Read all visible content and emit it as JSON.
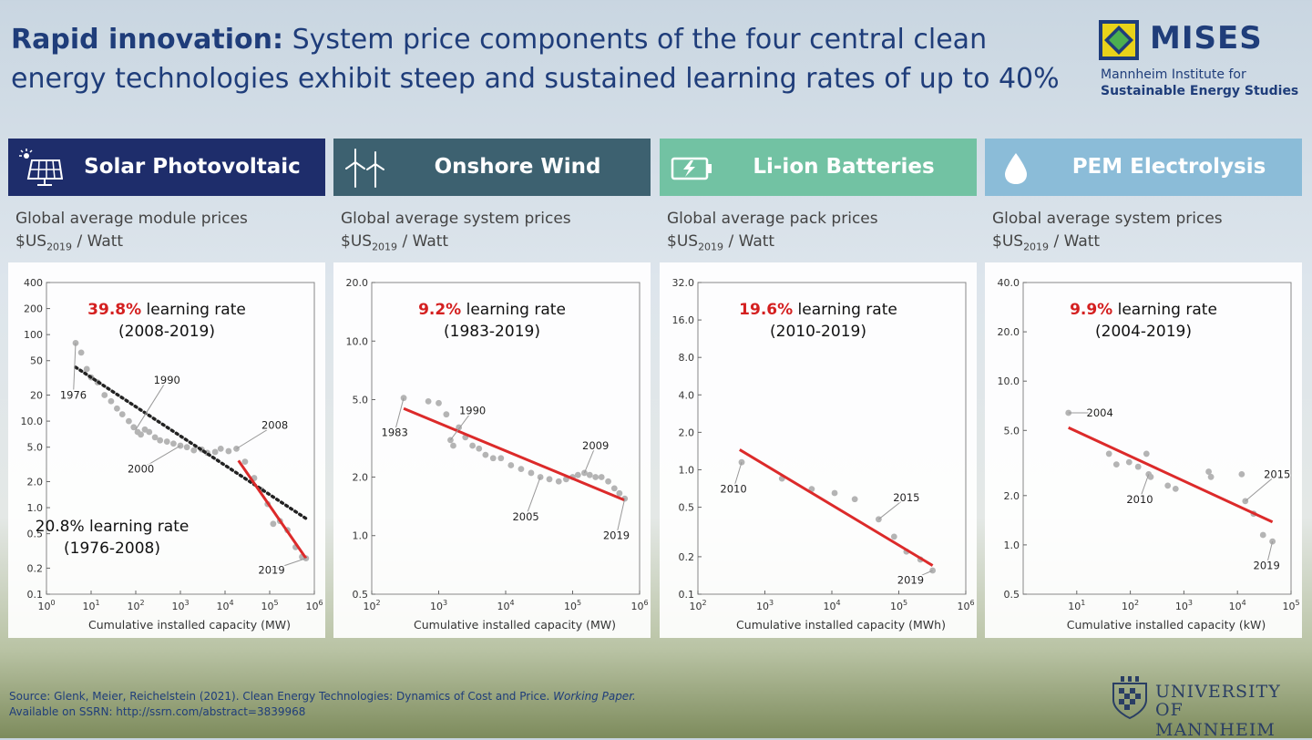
{
  "header": {
    "title_bold": "Rapid innovation:",
    "title_rest": " System price components of the four central clean energy technologies exhibit steep and sustained learning rates of up to 40%"
  },
  "logo": {
    "name": "MISES",
    "line1": "Mannheim Institute for",
    "line2": "Sustainable Energy Studies"
  },
  "panels": [
    {
      "title": "Solar Photovoltaic",
      "color": "#1e2d6b",
      "icon": "solar-panel-icon",
      "subtitle": "Global average module prices",
      "unit_prefix": "$US",
      "unit_sub": "2019",
      "unit_suffix": " / Watt",
      "lr_pct": "39.8%",
      "lr_text": " learning rate",
      "lr_period": "(2008-2019)",
      "lr2_text": "20.8% learning rate",
      "lr2_period": "(1976-2008)"
    },
    {
      "title": "Onshore Wind",
      "color": "#3d6170",
      "icon": "wind-turbine-icon",
      "subtitle": "Global average system prices",
      "unit_prefix": "$US",
      "unit_sub": "2019",
      "unit_suffix": " / Watt",
      "lr_pct": "9.2%",
      "lr_text": " learning rate",
      "lr_period": "(1983-2019)"
    },
    {
      "title": "Li-ion Batteries",
      "color": "#72c2a3",
      "icon": "battery-icon",
      "subtitle": "Global average pack prices",
      "unit_prefix": "$US",
      "unit_sub": "2019",
      "unit_suffix": " / Watt",
      "lr_pct": "19.6%",
      "lr_text": " learning rate",
      "lr_period": "(2010-2019)"
    },
    {
      "title": "PEM Electrolysis",
      "color": "#8bbcd8",
      "icon": "water-drop-icon",
      "subtitle": "Global average system prices",
      "unit_prefix": "$US",
      "unit_sub": "2019",
      "unit_suffix": " / Watt",
      "lr_pct": "9.9%",
      "lr_text": " learning rate",
      "lr_period": "(2004-2019)"
    }
  ],
  "chart_data": [
    {
      "type": "scatter",
      "xscale": "log",
      "yscale": "log",
      "xlabel": "Cumulative installed capacity (MW)",
      "xlim": [
        1,
        1000000
      ],
      "ylim": [
        0.1,
        400
      ],
      "xticks": [
        {
          "v": 1,
          "e": "0"
        },
        {
          "v": 10,
          "e": "1"
        },
        {
          "v": 100,
          "e": "2"
        },
        {
          "v": 1000,
          "e": "3"
        },
        {
          "v": 10000,
          "e": "4"
        },
        {
          "v": 100000,
          "e": "5"
        },
        {
          "v": 1000000,
          "e": "6"
        }
      ],
      "yticks": [
        {
          "v": 0.1,
          "t": "0.1"
        },
        {
          "v": 0.2,
          "t": "0.2"
        },
        {
          "v": 0.5,
          "t": "0.5"
        },
        {
          "v": 1,
          "t": "1.0"
        },
        {
          "v": 2,
          "t": "2.0"
        },
        {
          "v": 5,
          "t": "5.0"
        },
        {
          "v": 10,
          "t": "10.0"
        },
        {
          "v": 20,
          "t": "20"
        },
        {
          "v": 50,
          "t": "50"
        },
        {
          "v": 100,
          "t": "100"
        },
        {
          "v": 200,
          "t": "200"
        },
        {
          "v": 400,
          "t": "400"
        }
      ],
      "points": [
        [
          4.5,
          80
        ],
        [
          6,
          62
        ],
        [
          8,
          40
        ],
        [
          10,
          32
        ],
        [
          14,
          28
        ],
        [
          20,
          20
        ],
        [
          28,
          17
        ],
        [
          38,
          14
        ],
        [
          50,
          12
        ],
        [
          70,
          10
        ],
        [
          90,
          8.5
        ],
        [
          110,
          7.5
        ],
        [
          130,
          7
        ],
        [
          160,
          8
        ],
        [
          200,
          7.5
        ],
        [
          270,
          6.5
        ],
        [
          350,
          6
        ],
        [
          500,
          5.8
        ],
        [
          700,
          5.5
        ],
        [
          1000,
          5.2
        ],
        [
          1400,
          5
        ],
        [
          2000,
          4.6
        ],
        [
          3000,
          4.7
        ],
        [
          4000,
          4.3
        ],
        [
          6000,
          4.4
        ],
        [
          8000,
          4.8
        ],
        [
          12000,
          4.5
        ],
        [
          18000,
          4.8
        ],
        [
          28000,
          3.4
        ],
        [
          45000,
          2.2
        ],
        [
          65000,
          1.6
        ],
        [
          90000,
          1.1
        ],
        [
          120000,
          0.65
        ],
        [
          170000,
          0.7
        ],
        [
          250000,
          0.55
        ],
        [
          380000,
          0.35
        ],
        [
          530000,
          0.27
        ],
        [
          650000,
          0.26
        ]
      ],
      "fits": [
        {
          "style": "dotted",
          "color": "#222",
          "from": [
            4.5,
            42
          ],
          "to": [
            650000,
            0.75
          ]
        },
        {
          "style": "solid",
          "color": "#dc2a2a",
          "from": [
            20000,
            3.5
          ],
          "to": [
            650000,
            0.26
          ]
        }
      ],
      "annotations": [
        {
          "text": "1976",
          "at": [
            4.5,
            80
          ],
          "tx": [
            4.0,
            20
          ]
        },
        {
          "text": "1990",
          "at": [
            100,
            8
          ],
          "tx": [
            500,
            30
          ]
        },
        {
          "text": "2000",
          "at": [
            1000,
            5.2
          ],
          "tx": [
            130,
            2.8
          ]
        },
        {
          "text": "2008",
          "at": [
            18000,
            4.8
          ],
          "tx": [
            130000,
            9
          ]
        },
        {
          "text": "2019",
          "at": [
            650000,
            0.26
          ],
          "tx": [
            110000,
            0.19
          ]
        }
      ]
    },
    {
      "type": "scatter",
      "xscale": "log",
      "yscale": "log",
      "xlabel": "Cumulative installed capacity (MW)",
      "xlim": [
        100,
        1000000
      ],
      "ylim": [
        0.5,
        20
      ],
      "xticks": [
        {
          "v": 100,
          "e": "2"
        },
        {
          "v": 1000,
          "e": "3"
        },
        {
          "v": 10000,
          "e": "4"
        },
        {
          "v": 100000,
          "e": "5"
        },
        {
          "v": 1000000,
          "e": "6"
        }
      ],
      "yticks": [
        {
          "v": 0.5,
          "t": "0.5"
        },
        {
          "v": 1,
          "t": "1.0"
        },
        {
          "v": 2,
          "t": "2.0"
        },
        {
          "v": 5,
          "t": "5.0"
        },
        {
          "v": 10,
          "t": "10.0"
        },
        {
          "v": 20,
          "t": "20.0"
        }
      ],
      "points": [
        [
          300,
          5.1
        ],
        [
          700,
          4.9
        ],
        [
          1000,
          4.8
        ],
        [
          1300,
          4.2
        ],
        [
          1500,
          3.1
        ],
        [
          1650,
          2.9
        ],
        [
          2000,
          3.6
        ],
        [
          2500,
          3.2
        ],
        [
          3200,
          2.9
        ],
        [
          4000,
          2.8
        ],
        [
          5000,
          2.6
        ],
        [
          6500,
          2.5
        ],
        [
          8500,
          2.5
        ],
        [
          12000,
          2.3
        ],
        [
          17000,
          2.2
        ],
        [
          24000,
          2.1
        ],
        [
          33000,
          2.0
        ],
        [
          45000,
          1.95
        ],
        [
          62000,
          1.9
        ],
        [
          80000,
          1.95
        ],
        [
          100000,
          2.0
        ],
        [
          120000,
          2.05
        ],
        [
          150000,
          2.1
        ],
        [
          180000,
          2.05
        ],
        [
          220000,
          2.0
        ],
        [
          270000,
          2.0
        ],
        [
          340000,
          1.9
        ],
        [
          420000,
          1.75
        ],
        [
          500000,
          1.65
        ],
        [
          600000,
          1.55
        ]
      ],
      "fits": [
        {
          "style": "solid",
          "color": "#dc2a2a",
          "from": [
            300,
            4.5
          ],
          "to": [
            600000,
            1.52
          ]
        }
      ],
      "annotations": [
        {
          "text": "1983",
          "at": [
            300,
            5.1
          ],
          "tx": [
            220,
            3.4
          ]
        },
        {
          "text": "1990",
          "at": [
            1500,
            3.1
          ],
          "tx": [
            3200,
            4.4
          ]
        },
        {
          "text": "2005",
          "at": [
            33000,
            2.0
          ],
          "tx": [
            20000,
            1.25
          ]
        },
        {
          "text": "2009",
          "at": [
            150000,
            2.1
          ],
          "tx": [
            220000,
            2.9
          ]
        },
        {
          "text": "2019",
          "at": [
            600000,
            1.55
          ],
          "tx": [
            450000,
            1.0
          ]
        }
      ]
    },
    {
      "type": "scatter",
      "xscale": "log",
      "yscale": "log",
      "xlabel": "Cumulative installed capacity (MWh)",
      "xlim": [
        100,
        1000000
      ],
      "ylim": [
        0.1,
        32
      ],
      "xticks": [
        {
          "v": 100,
          "e": "2"
        },
        {
          "v": 1000,
          "e": "3"
        },
        {
          "v": 10000,
          "e": "4"
        },
        {
          "v": 100000,
          "e": "5"
        },
        {
          "v": 1000000,
          "e": "6"
        }
      ],
      "yticks": [
        {
          "v": 0.1,
          "t": "0.1"
        },
        {
          "v": 0.2,
          "t": "0.2"
        },
        {
          "v": 0.5,
          "t": "0.5"
        },
        {
          "v": 1,
          "t": "1.0"
        },
        {
          "v": 2,
          "t": "2.0"
        },
        {
          "v": 4,
          "t": "4.0"
        },
        {
          "v": 8,
          "t": "8.0"
        },
        {
          "v": 16,
          "t": "16.0"
        },
        {
          "v": 32,
          "t": "32.0"
        }
      ],
      "points": [
        [
          450,
          1.15
        ],
        [
          1800,
          0.85
        ],
        [
          5000,
          0.7
        ],
        [
          11000,
          0.65
        ],
        [
          22000,
          0.58
        ],
        [
          50000,
          0.4
        ],
        [
          85000,
          0.29
        ],
        [
          130000,
          0.22
        ],
        [
          210000,
          0.19
        ],
        [
          320000,
          0.155
        ]
      ],
      "fits": [
        {
          "style": "solid",
          "color": "#dc2a2a",
          "from": [
            420,
            1.45
          ],
          "to": [
            320000,
            0.17
          ]
        }
      ],
      "annotations": [
        {
          "text": "2010",
          "at": [
            450,
            1.15
          ],
          "tx": [
            340,
            0.7
          ]
        },
        {
          "text": "2015",
          "at": [
            50000,
            0.4
          ],
          "tx": [
            130000,
            0.6
          ]
        },
        {
          "text": "2019",
          "at": [
            320000,
            0.155
          ],
          "tx": [
            150000,
            0.13
          ]
        }
      ]
    },
    {
      "type": "scatter",
      "xscale": "log",
      "yscale": "log",
      "xlabel": "Cumulative installed capacity (kW)",
      "xlim": [
        1,
        100000
      ],
      "ylim": [
        0.5,
        40
      ],
      "xticks": [
        {
          "v": 10,
          "e": "1"
        },
        {
          "v": 100,
          "e": "2"
        },
        {
          "v": 1000,
          "e": "3"
        },
        {
          "v": 10000,
          "e": "4"
        },
        {
          "v": 100000,
          "e": "5"
        }
      ],
      "yticks": [
        {
          "v": 0.5,
          "t": "0.5"
        },
        {
          "v": 1,
          "t": "1.0"
        },
        {
          "v": 2,
          "t": "2.0"
        },
        {
          "v": 5,
          "t": "5.0"
        },
        {
          "v": 10,
          "t": "10.0"
        },
        {
          "v": 20,
          "t": "20.0"
        },
        {
          "v": 40,
          "t": "40.0"
        }
      ],
      "points": [
        [
          7,
          6.4
        ],
        [
          40,
          3.6
        ],
        [
          55,
          3.1
        ],
        [
          95,
          3.2
        ],
        [
          140,
          3.0
        ],
        [
          200,
          3.6
        ],
        [
          220,
          2.7
        ],
        [
          240,
          2.6
        ],
        [
          500,
          2.3
        ],
        [
          700,
          2.2
        ],
        [
          2900,
          2.8
        ],
        [
          3200,
          2.6
        ],
        [
          12000,
          2.7
        ],
        [
          14000,
          1.85
        ],
        [
          20000,
          1.55
        ],
        [
          30000,
          1.15
        ],
        [
          45000,
          1.05
        ]
      ],
      "fits": [
        {
          "style": "solid",
          "color": "#dc2a2a",
          "from": [
            7,
            5.2
          ],
          "to": [
            45000,
            1.38
          ]
        }
      ],
      "annotations": [
        {
          "text": "2004",
          "at": [
            7,
            6.4
          ],
          "tx": [
            27,
            6.4
          ]
        },
        {
          "text": "2010",
          "at": [
            220,
            2.7
          ],
          "tx": [
            150,
            1.9
          ]
        },
        {
          "text": "2015",
          "at": [
            14000,
            1.85
          ],
          "tx": [
            55000,
            2.7
          ]
        },
        {
          "text": "2019",
          "at": [
            45000,
            1.05
          ],
          "tx": [
            35000,
            0.75
          ]
        }
      ]
    }
  ],
  "source": {
    "line1_pre": "Source: Glenk, Meier, Reichelstein (2021). Clean Energy Technologies: Dynamics of Cost and Price. ",
    "line1_em": "Working Paper.",
    "line2": "Available on SSRN: http://ssrn.com/abstract=3839968"
  },
  "university": {
    "line1": "UNIVERSITY",
    "line2": "OF MANNHEIM"
  }
}
